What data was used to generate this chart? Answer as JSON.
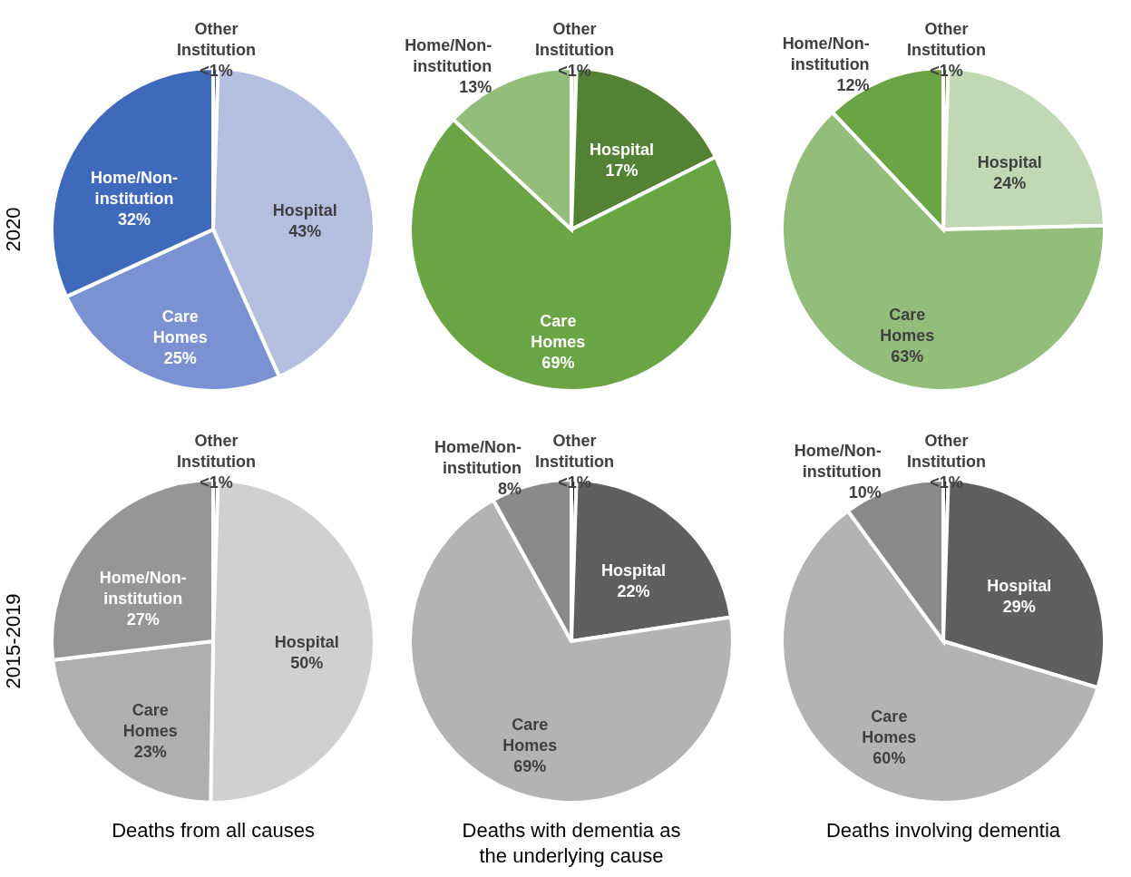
{
  "chart_data": [
    {
      "type": "pie",
      "ylabel": "2020",
      "categories": [
        "Other Institution",
        "Hospital",
        "Care Homes",
        "Home/Non-institution"
      ],
      "values": [
        0.5,
        43,
        25,
        32
      ],
      "value_labels": [
        "<1%",
        "43%",
        "25%",
        "32%"
      ],
      "colors": [
        "#2f5597",
        "#b4bfe0",
        "#7a92d2",
        "#3f6abb"
      ]
    },
    {
      "type": "pie",
      "categories": [
        "Other Institution",
        "Hospital",
        "Care Homes",
        "Home/Non-institution"
      ],
      "values": [
        0.5,
        17,
        69,
        13
      ],
      "value_labels": [
        "<1%",
        "17%",
        "69%",
        "13%"
      ],
      "colors": [
        "#c5dcb8",
        "#548235",
        "#6aa444",
        "#93bd7a"
      ]
    },
    {
      "type": "pie",
      "categories": [
        "Other Institution",
        "Hospital",
        "Care Homes",
        "Home/Non-institution"
      ],
      "values": [
        0.5,
        24,
        63,
        12
      ],
      "value_labels": [
        "<1%",
        "24%",
        "63%",
        "12%"
      ],
      "colors": [
        "#548235",
        "#c0d8b4",
        "#93bd7a",
        "#6aa444"
      ]
    },
    {
      "type": "pie",
      "ylabel": "2015-2019",
      "xlabel": "Deaths from all causes",
      "categories": [
        "Other Institution",
        "Hospital",
        "Care Homes",
        "Home/Non-institution"
      ],
      "values": [
        0.5,
        50,
        23,
        27
      ],
      "value_labels": [
        "<1%",
        "50%",
        "23%",
        "27%"
      ],
      "colors": [
        "#7f7f7f",
        "#d0d0d0",
        "#afafaf",
        "#969696"
      ]
    },
    {
      "type": "pie",
      "xlabel": "Deaths with dementia as the underlying cause",
      "categories": [
        "Other Institution",
        "Hospital",
        "Care Homes",
        "Home/Non-institution"
      ],
      "values": [
        0.5,
        22,
        69,
        8
      ],
      "value_labels": [
        "<1%",
        "22%",
        "69%",
        "8%"
      ],
      "colors": [
        "#1a1a1a",
        "#5f5f5f",
        "#b3b3b3",
        "#8a8a8a"
      ]
    },
    {
      "type": "pie",
      "xlabel": "Deaths involving dementia",
      "categories": [
        "Other Institution",
        "Hospital",
        "Care Homes",
        "Home/Non-institution"
      ],
      "values": [
        0.5,
        29,
        60,
        10
      ],
      "value_labels": [
        "<1%",
        "29%",
        "60%",
        "10%"
      ],
      "colors": [
        "#1a1a1a",
        "#5f5f5f",
        "#b3b3b3",
        "#8a8a8a"
      ]
    }
  ]
}
